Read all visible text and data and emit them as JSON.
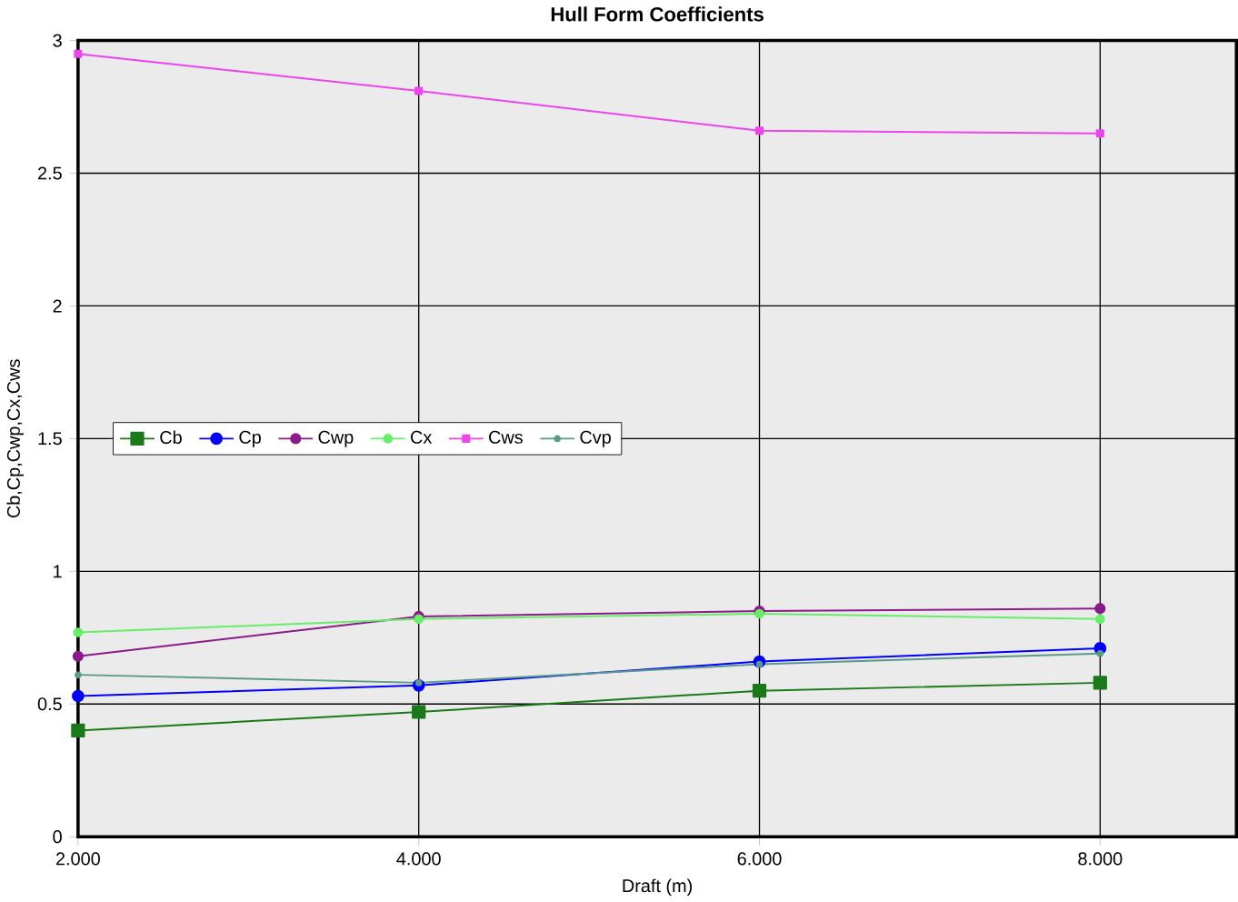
{
  "chart_data": {
    "type": "line",
    "title": "Hull Form Coefficients",
    "xlabel": "Draft (m)",
    "ylabel": "Cb,Cp,Cwp,Cx,Cws",
    "x": [
      2,
      4,
      6,
      8
    ],
    "series": [
      {
        "name": "Cb",
        "color": "#1a7a1a",
        "marker": "square",
        "values": [
          0.4,
          0.47,
          0.55,
          0.58
        ]
      },
      {
        "name": "Cp",
        "color": "#0000ff",
        "marker": "circle",
        "values": [
          0.53,
          0.57,
          0.66,
          0.71
        ]
      },
      {
        "name": "Cwp",
        "color": "#8b1a8b",
        "marker": "circle",
        "values": [
          0.68,
          0.83,
          0.85,
          0.86
        ]
      },
      {
        "name": "Cx",
        "color": "#66ee66",
        "marker": "circle",
        "values": [
          0.77,
          0.82,
          0.84,
          0.82
        ]
      },
      {
        "name": "Cws",
        "color": "#ee44ee",
        "marker": "square",
        "values": [
          2.95,
          2.81,
          2.66,
          2.65
        ]
      },
      {
        "name": "Cvp",
        "color": "#5a9a8a",
        "marker": "circle",
        "values": [
          0.61,
          0.58,
          0.65,
          0.69
        ]
      }
    ],
    "xlim": [
      2,
      8.8
    ],
    "ylim": [
      0,
      3
    ],
    "xticks": [
      {
        "value": 2,
        "label": "2.000"
      },
      {
        "value": 4,
        "label": "4.000"
      },
      {
        "value": 6,
        "label": "6.000"
      },
      {
        "value": 8,
        "label": "8.000"
      }
    ],
    "yticks": [
      0,
      0.5,
      1,
      1.5,
      2,
      2.5,
      3
    ],
    "grid": true,
    "legend": "left"
  }
}
